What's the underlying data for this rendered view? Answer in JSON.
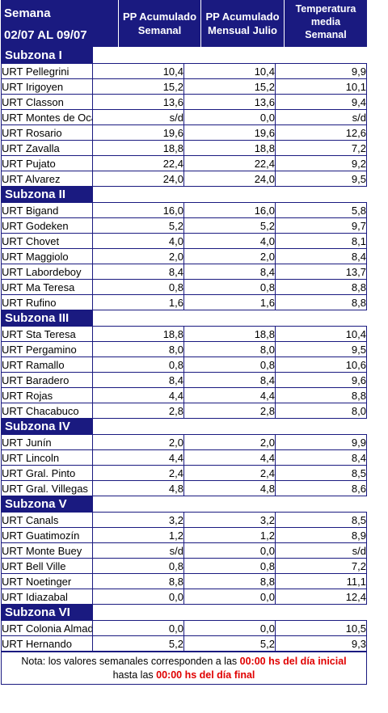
{
  "header": {
    "week_label": "Semana",
    "week_range": "02/07 AL 09/07",
    "col1": [
      "PP Acumulado",
      "Semanal"
    ],
    "col2": [
      "PP Acumulado",
      "Mensual Julio"
    ],
    "col3": [
      "Temperatura",
      "media",
      "Semanal"
    ]
  },
  "zones": [
    {
      "name": "Subzona I",
      "rows": [
        [
          "URT Pellegrini",
          "10,4",
          "10,4",
          "9,9"
        ],
        [
          "URT Irigoyen",
          "15,2",
          "15,2",
          "10,1"
        ],
        [
          "URT Classon",
          "13,6",
          "13,6",
          "9,4"
        ],
        [
          "URT Montes de Oca",
          "s/d",
          "0,0",
          "s/d"
        ],
        [
          "URT Rosario",
          "19,6",
          "19,6",
          "12,6"
        ],
        [
          "URT Zavalla",
          "18,8",
          "18,8",
          "7,2"
        ],
        [
          "URT Pujato",
          "22,4",
          "22,4",
          "9,2"
        ],
        [
          "URT Alvarez",
          "24,0",
          "24,0",
          "9,5"
        ]
      ]
    },
    {
      "name": "Subzona II",
      "rows": [
        [
          "URT Bigand",
          "16,0",
          "16,0",
          "5,8"
        ],
        [
          "URT Godeken",
          "5,2",
          "5,2",
          "9,7"
        ],
        [
          "URT Chovet",
          "4,0",
          "4,0",
          "8,1"
        ],
        [
          "URT Maggiolo",
          "2,0",
          "2,0",
          "8,4"
        ],
        [
          "URT Labordeboy",
          "8,4",
          "8,4",
          "13,7"
        ],
        [
          "URT Ma Teresa",
          "0,8",
          "0,8",
          "8,8"
        ],
        [
          "URT Rufino",
          "1,6",
          "1,6",
          "8,8"
        ]
      ]
    },
    {
      "name": "Subzona III",
      "rows": [
        [
          "URT Sta Teresa",
          "18,8",
          "18,8",
          "10,4"
        ],
        [
          "URT Pergamino",
          "8,0",
          "8,0",
          "9,5"
        ],
        [
          "URT Ramallo",
          "0,8",
          "0,8",
          "10,6"
        ],
        [
          "URT Baradero",
          "8,4",
          "8,4",
          "9,6"
        ],
        [
          "URT Rojas",
          "4,4",
          "4,4",
          "8,8"
        ],
        [
          "URT Chacabuco",
          "2,8",
          "2,8",
          "8,0"
        ]
      ]
    },
    {
      "name": "Subzona IV",
      "rows": [
        [
          "URT Junín",
          "2,0",
          "2,0",
          "9,9"
        ],
        [
          "URT Lincoln",
          "4,4",
          "4,4",
          "8,4"
        ],
        [
          "URT Gral. Pinto",
          "2,4",
          "2,4",
          "8,5"
        ],
        [
          "URT Gral. Villegas",
          "4,8",
          "4,8",
          "8,6"
        ]
      ]
    },
    {
      "name": "Subzona V",
      "rows": [
        [
          "URT Canals",
          "3,2",
          "3,2",
          "8,5"
        ],
        [
          "URT Guatimozín",
          "1,2",
          "1,2",
          "8,9"
        ],
        [
          "URT Monte Buey",
          "s/d",
          "0,0",
          "s/d"
        ],
        [
          "URT Bell Ville",
          "0,8",
          "0,8",
          "7,2"
        ],
        [
          "URT Noetinger",
          "8,8",
          "8,8",
          "11,1"
        ],
        [
          "URT Idiazabal",
          "0,0",
          "0,0",
          "12,4"
        ]
      ]
    },
    {
      "name": "Subzona VI",
      "rows": [
        [
          "URT Colonia Almada",
          "0,0",
          "0,0",
          "10,5"
        ],
        [
          "URT Hernando",
          "5,2",
          "5,2",
          "9,3"
        ]
      ]
    }
  ],
  "note": {
    "part1": "Nota: los valores semanales corresponden a las ",
    "red1": "00:00 hs del día inicial",
    "part2": "hasta las ",
    "red2": "00:00 hs del día final"
  },
  "colors": {
    "header_bg": "#1a1a80",
    "highlight": "#e00000"
  }
}
